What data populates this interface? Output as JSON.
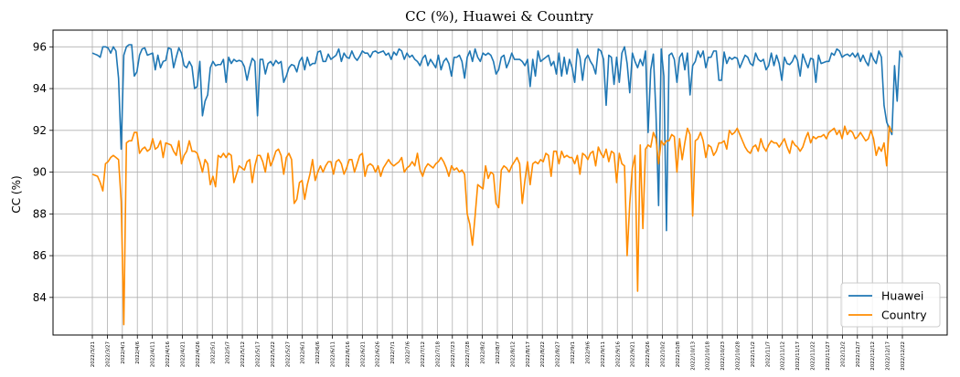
{
  "chart_data": {
    "type": "line",
    "title": "CC (%), Huawei & Country",
    "xlabel": "",
    "ylabel": "CC (%)",
    "ylim": [
      82.2,
      96.8
    ],
    "yticks": [
      84,
      86,
      88,
      90,
      92,
      94,
      96
    ],
    "grid": true,
    "legend": "lower-right",
    "x_tick_labels": [
      "2022/3/21",
      "2022/3/27",
      "2022/4/1",
      "2022/4/6",
      "2022/4/11",
      "2022/4/16",
      "2022/4/21",
      "2022/4/26",
      "2022/5/1",
      "2022/5/7",
      "2022/5/12",
      "2022/5/17",
      "2022/5/22",
      "2022/5/27",
      "2022/6/1",
      "2022/6/6",
      "2022/6/11",
      "2022/6/16",
      "2022/6/21",
      "2022/6/26",
      "2022/7/1",
      "2022/7/6",
      "2022/7/12",
      "2022/7/18",
      "2022/7/23",
      "2022/7/28",
      "2022/8/2",
      "2022/8/7",
      "2022/8/12",
      "2022/8/17",
      "2022/8/22",
      "2022/8/27",
      "2022/9/1",
      "2022/9/6",
      "2022/9/11",
      "2022/9/16",
      "2022/9/21",
      "2022/9/26",
      "2022/10/2",
      "2022/10/8",
      "2022/10/13",
      "2022/10/18",
      "2022/10/23",
      "2022/10/28",
      "2022/11/2",
      "2022/11/7",
      "2022/11/12",
      "2022/11/17",
      "2022/11/22",
      "2022/11/27",
      "2022/12/2",
      "2022/12/7",
      "2022/12/12",
      "2022/12/17",
      "2022/12/22"
    ],
    "series": [
      {
        "name": "Huawei",
        "color": "#1f77b4",
        "values": [
          95.7,
          95.65,
          95.6,
          95.5,
          96.0,
          96.0,
          95.95,
          95.7,
          96.0,
          95.8,
          94.5,
          91.1,
          95.6,
          96.0,
          96.1,
          96.1,
          94.6,
          94.8,
          95.6,
          95.9,
          95.95,
          95.6,
          95.65,
          95.7,
          94.9,
          95.6,
          95.0,
          95.3,
          95.35,
          95.95,
          95.9,
          95.0,
          95.5,
          95.95,
          95.7,
          95.1,
          95.0,
          95.3,
          95.05,
          94.0,
          94.1,
          95.3,
          92.7,
          93.4,
          93.7,
          95.0,
          95.3,
          95.1,
          95.15,
          95.15,
          95.4,
          94.3,
          95.5,
          95.2,
          95.4,
          95.3,
          95.35,
          95.3,
          95.05,
          94.4,
          95.0,
          95.45,
          95.3,
          92.7,
          95.4,
          95.4,
          94.7,
          95.2,
          95.3,
          95.1,
          95.35,
          95.2,
          95.3,
          94.3,
          94.6,
          95.0,
          95.15,
          95.1,
          94.8,
          95.3,
          95.5,
          94.9,
          95.5,
          95.1,
          95.2,
          95.2,
          95.75,
          95.8,
          95.3,
          95.3,
          95.65,
          95.4,
          95.5,
          95.6,
          95.9,
          95.3,
          95.7,
          95.5,
          95.45,
          95.8,
          95.5,
          95.35,
          95.55,
          95.8,
          95.7,
          95.7,
          95.5,
          95.75,
          95.8,
          95.7,
          95.75,
          95.8,
          95.6,
          95.7,
          95.4,
          95.75,
          95.6,
          95.9,
          95.8,
          95.4,
          95.7,
          95.5,
          95.6,
          95.4,
          95.3,
          95.1,
          95.45,
          95.6,
          95.1,
          95.4,
          95.2,
          95.0,
          95.6,
          94.9,
          95.3,
          95.45,
          95.2,
          94.6,
          95.5,
          95.5,
          95.6,
          95.3,
          94.5,
          95.5,
          95.8,
          95.3,
          95.9,
          95.5,
          95.3,
          95.7,
          95.6,
          95.7,
          95.6,
          95.3,
          94.7,
          94.9,
          95.5,
          95.6,
          95.0,
          95.3,
          95.7,
          95.4,
          95.4,
          95.4,
          95.3,
          95.1,
          95.4,
          94.1,
          95.4,
          94.6,
          95.8,
          95.3,
          95.4,
          95.5,
          95.6,
          95.1,
          95.3,
          94.7,
          95.7,
          94.6,
          95.5,
          94.7,
          95.4,
          95.0,
          94.3,
          95.9,
          95.5,
          94.4,
          95.4,
          95.6,
          95.3,
          95.1,
          94.7,
          95.9,
          95.8,
          95.4,
          93.2,
          95.6,
          95.5,
          94.2,
          95.5,
          94.3,
          95.7,
          96.0,
          95.2,
          93.8,
          95.7,
          95.3,
          95.0,
          95.4,
          95.1,
          95.8,
          91.9,
          94.9,
          95.65,
          92.8,
          88.4,
          95.9,
          94.6,
          87.2,
          95.6,
          95.7,
          95.4,
          94.3,
          95.5,
          95.7,
          94.9,
          95.7,
          93.7,
          95.1,
          95.3,
          95.8,
          95.5,
          95.8,
          95.0,
          95.5,
          95.5,
          95.8,
          95.8,
          94.4,
          94.4,
          95.75,
          95.2,
          95.5,
          95.4,
          95.5,
          95.45,
          95.0,
          95.3,
          95.6,
          95.5,
          95.2,
          95.1,
          95.7,
          95.4,
          95.3,
          95.4,
          94.9,
          95.1,
          95.7,
          95.1,
          95.6,
          95.2,
          94.4,
          95.5,
          95.2,
          95.15,
          95.3,
          95.6,
          95.35,
          94.6,
          95.65,
          95.3,
          95.0,
          95.45,
          95.4,
          94.3,
          95.6,
          95.2,
          95.25,
          95.3,
          95.3,
          95.7,
          95.6,
          95.9,
          95.8,
          95.5,
          95.6,
          95.65,
          95.55,
          95.7,
          95.5,
          95.7,
          95.3,
          95.6,
          95.3,
          95.1,
          95.7,
          95.4,
          95.2,
          95.8,
          95.5,
          93.2,
          92.4,
          92.1,
          91.8,
          95.1,
          93.4,
          95.8,
          95.5
        ]
      },
      {
        "name": "Country",
        "color": "#ff8c00",
        "values": [
          89.9,
          89.85,
          89.8,
          89.5,
          89.1,
          90.4,
          90.5,
          90.7,
          90.8,
          90.7,
          90.6,
          88.6,
          82.7,
          91.4,
          91.5,
          91.5,
          91.9,
          91.9,
          90.9,
          91.1,
          91.2,
          91.0,
          91.1,
          91.6,
          91.1,
          91.2,
          91.5,
          90.7,
          91.4,
          91.35,
          91.3,
          91.0,
          90.8,
          91.5,
          90.4,
          90.8,
          91.0,
          91.5,
          91.0,
          91.0,
          90.9,
          90.5,
          90.0,
          90.6,
          90.4,
          89.4,
          89.8,
          89.3,
          90.8,
          90.7,
          90.9,
          90.7,
          90.9,
          90.8,
          89.5,
          89.9,
          90.3,
          90.2,
          90.1,
          90.5,
          90.6,
          89.5,
          90.3,
          90.8,
          90.8,
          90.5,
          90.0,
          90.9,
          90.3,
          90.6,
          91.0,
          91.1,
          90.8,
          89.9,
          90.7,
          90.9,
          90.6,
          88.5,
          88.7,
          89.5,
          89.6,
          88.7,
          89.4,
          89.9,
          90.6,
          89.6,
          90.0,
          90.3,
          90.0,
          90.3,
          90.5,
          90.5,
          89.9,
          90.5,
          90.6,
          90.4,
          89.9,
          90.2,
          90.6,
          90.6,
          90.0,
          90.4,
          90.8,
          90.9,
          89.8,
          90.3,
          90.4,
          90.3,
          90.0,
          90.3,
          89.8,
          90.2,
          90.4,
          90.6,
          90.4,
          90.3,
          90.4,
          90.5,
          90.7,
          90.0,
          90.2,
          90.3,
          90.5,
          90.3,
          90.9,
          90.1,
          89.8,
          90.2,
          90.4,
          90.3,
          90.2,
          90.4,
          90.5,
          90.7,
          90.5,
          90.2,
          89.8,
          90.3,
          90.1,
          90.2,
          90.0,
          90.1,
          89.9,
          88.0,
          87.5,
          86.5,
          87.9,
          89.4,
          89.3,
          89.2,
          90.3,
          89.7,
          90.0,
          89.9,
          88.5,
          88.3,
          90.1,
          90.3,
          90.2,
          90.0,
          90.3,
          90.5,
          90.7,
          90.4,
          88.5,
          89.6,
          90.5,
          89.4,
          90.4,
          90.5,
          90.4,
          90.6,
          90.5,
          90.9,
          90.8,
          89.8,
          91.0,
          91.0,
          90.4,
          91.0,
          90.7,
          90.8,
          90.7,
          90.7,
          90.4,
          90.8,
          89.9,
          90.9,
          90.8,
          90.6,
          90.9,
          91.0,
          90.3,
          91.2,
          90.9,
          90.7,
          91.1,
          90.5,
          91.0,
          90.9,
          89.5,
          90.9,
          90.4,
          90.3,
          86.0,
          88.5,
          90.2,
          90.8,
          84.3,
          91.3,
          87.3,
          91.1,
          91.3,
          91.2,
          91.9,
          91.6,
          90.4,
          91.5,
          91.3,
          91.5,
          91.5,
          91.8,
          91.7,
          90.0,
          91.6,
          90.6,
          91.4,
          92.1,
          91.8,
          87.9,
          91.5,
          91.6,
          91.9,
          91.5,
          90.7,
          91.3,
          91.2,
          90.8,
          91.0,
          91.4,
          91.4,
          91.5,
          91.1,
          92.0,
          91.8,
          91.9,
          92.1,
          91.8,
          91.5,
          91.2,
          91.0,
          90.9,
          91.2,
          91.3,
          91.0,
          91.6,
          91.2,
          91.0,
          91.3,
          91.5,
          91.4,
          91.4,
          91.2,
          91.4,
          91.6,
          91.2,
          90.9,
          91.5,
          91.3,
          91.2,
          91.0,
          91.2,
          91.6,
          91.9,
          91.4,
          91.7,
          91.6,
          91.7,
          91.7,
          91.8,
          91.6,
          91.9,
          92.0,
          92.1,
          91.8,
          92.0,
          91.6,
          92.2,
          91.8,
          92.0,
          91.9,
          91.6,
          91.7,
          91.9,
          91.7,
          91.5,
          91.6,
          92.0,
          91.6,
          90.8,
          91.2,
          91.0,
          91.4,
          90.3,
          92.2,
          91.9
        ]
      }
    ]
  }
}
